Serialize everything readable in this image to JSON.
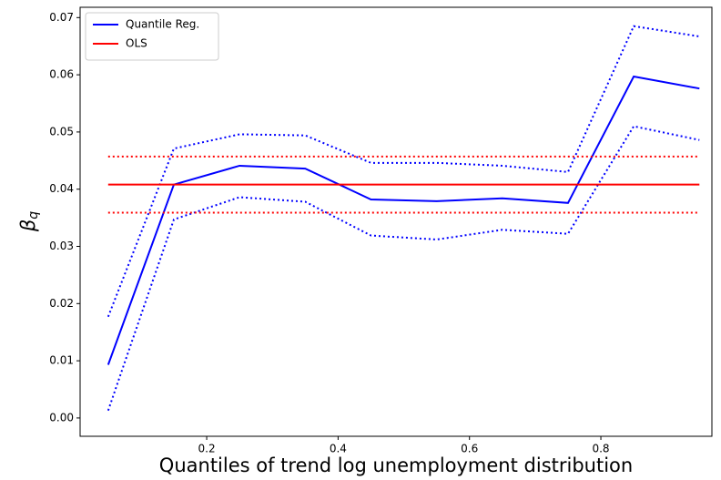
{
  "chart_data": {
    "type": "line",
    "xlabel": "Quantiles of trend log unemployment distribution",
    "ylabel": "β",
    "ylabel_subscript": "q",
    "x": [
      0.05,
      0.15,
      0.25,
      0.35,
      0.45,
      0.55,
      0.65,
      0.75,
      0.85,
      0.95
    ],
    "series": [
      {
        "name": "Quantile Reg.",
        "color": "#0000ff",
        "style": "solid",
        "values": [
          0.0093,
          0.0408,
          0.0441,
          0.0436,
          0.0382,
          0.0379,
          0.0384,
          0.0376,
          0.0597,
          0.0576
        ]
      },
      {
        "color": "#0000ff",
        "style": "dotted",
        "values": [
          0.0177,
          0.0471,
          0.0496,
          0.0494,
          0.0446,
          0.0446,
          0.0441,
          0.043,
          0.0685,
          0.0667
        ]
      },
      {
        "color": "#0000ff",
        "style": "dotted",
        "values": [
          0.0013,
          0.0347,
          0.0386,
          0.0378,
          0.0319,
          0.0312,
          0.0329,
          0.0322,
          0.051,
          0.0486
        ]
      },
      {
        "name": "OLS",
        "color": "#ff0000",
        "style": "solid",
        "values": [
          0.0408,
          0.0408,
          0.0408,
          0.0408,
          0.0408,
          0.0408,
          0.0408,
          0.0408,
          0.0408,
          0.0408
        ]
      },
      {
        "color": "#ff0000",
        "style": "dotted",
        "values": [
          0.0457,
          0.0457,
          0.0457,
          0.0457,
          0.0457,
          0.0457,
          0.0457,
          0.0457,
          0.0457,
          0.0457
        ]
      },
      {
        "color": "#ff0000",
        "style": "dotted",
        "values": [
          0.0359,
          0.0359,
          0.0359,
          0.0359,
          0.0359,
          0.0359,
          0.0359,
          0.0359,
          0.0359,
          0.0359
        ]
      }
    ],
    "xlim": [
      0.0073,
      0.969
    ],
    "ylim": [
      -0.0032,
      0.0718
    ],
    "xticks": [
      0.2,
      0.4,
      0.6,
      0.8
    ],
    "yticks": [
      {
        "value": 0,
        "label": "0.00"
      },
      {
        "value": 0.01,
        "label": "0.01"
      },
      {
        "value": 0.02,
        "label": "0.02"
      },
      {
        "value": 0.03,
        "label": "0.03"
      },
      {
        "value": 0.04,
        "label": "0.04"
      },
      {
        "value": 0.05,
        "label": "0.05"
      },
      {
        "value": 0.06,
        "label": "0.06"
      },
      {
        "value": 0.07,
        "label": "0.07"
      }
    ],
    "legend": "upper left",
    "grid": false
  }
}
